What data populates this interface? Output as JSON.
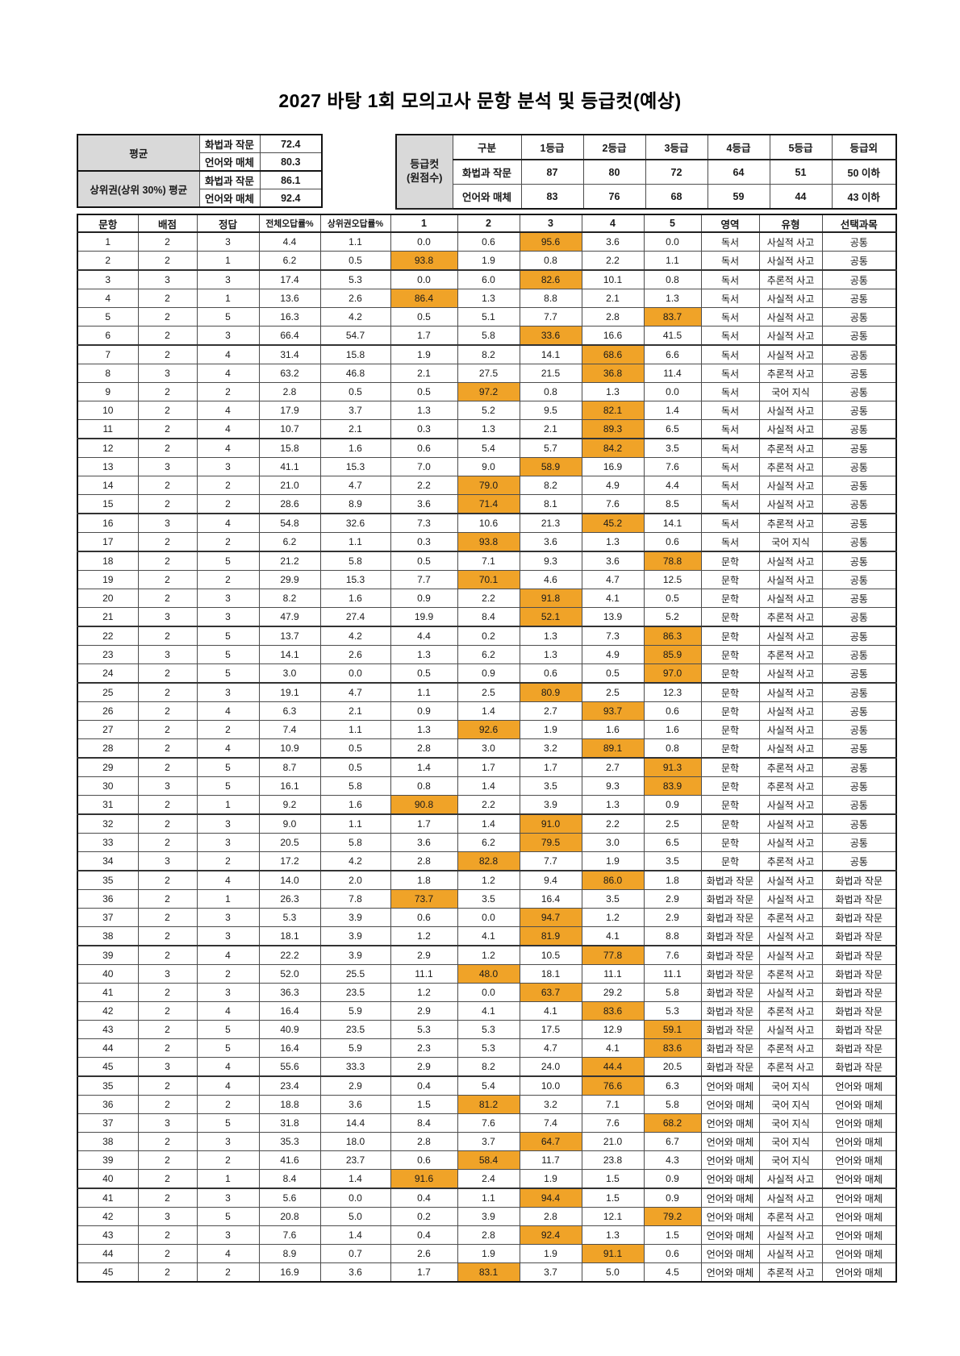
{
  "title": "2027 바탕 1회 모의고사 문항 분석 및 등급컷(예상)",
  "colors": {
    "highlight": "#F0A328",
    "header_gray": "#D9D9D9"
  },
  "averages": {
    "groups": [
      {
        "label": "평균",
        "rows": [
          [
            "화법과 작문",
            "72.4"
          ],
          [
            "언어와 매체",
            "80.3"
          ]
        ]
      },
      {
        "label": "상위권(상위 30%) 평균",
        "rows": [
          [
            "화법과 작문",
            "86.1"
          ],
          [
            "언어와 매체",
            "92.4"
          ]
        ]
      }
    ]
  },
  "grade_cut": {
    "corner_line1": "등급컷",
    "corner_line2": "(원점수)",
    "headers": [
      "구분",
      "1등급",
      "2등급",
      "3등급",
      "4등급",
      "5등급",
      "등급외"
    ],
    "rows": [
      {
        "label": "화법과 작문",
        "values": [
          "87",
          "80",
          "72",
          "64",
          "51",
          "50 이하"
        ]
      },
      {
        "label": "언어와 매체",
        "values": [
          "83",
          "76",
          "68",
          "59",
          "44",
          "43 이하"
        ]
      }
    ]
  },
  "main_table": {
    "headers": [
      "문항",
      "배점",
      "정답",
      "전체오답률%",
      "상위권오답률%",
      "1",
      "2",
      "3",
      "4",
      "5",
      "영역",
      "유형",
      "선택과목"
    ],
    "group_breaks": [
      1,
      5,
      10,
      14,
      16,
      20,
      23,
      27,
      30,
      33,
      37,
      44,
      50
    ],
    "rows": [
      [
        1,
        2,
        3,
        "4.4",
        "1.1",
        "0.0",
        "0.6",
        "95.6",
        "3.6",
        "0.0",
        "독서",
        "사실적 사고",
        "공통"
      ],
      [
        2,
        2,
        1,
        "6.2",
        "0.5",
        "93.8",
        "1.9",
        "0.8",
        "2.2",
        "1.1",
        "독서",
        "사실적 사고",
        "공통"
      ],
      [
        3,
        3,
        3,
        "17.4",
        "5.3",
        "0.0",
        "6.0",
        "82.6",
        "10.1",
        "0.8",
        "독서",
        "추론적 사고",
        "공통"
      ],
      [
        4,
        2,
        1,
        "13.6",
        "2.6",
        "86.4",
        "1.3",
        "8.8",
        "2.1",
        "1.3",
        "독서",
        "사실적 사고",
        "공통"
      ],
      [
        5,
        2,
        5,
        "16.3",
        "4.2",
        "0.5",
        "5.1",
        "7.7",
        "2.8",
        "83.7",
        "독서",
        "사실적 사고",
        "공통"
      ],
      [
        6,
        2,
        3,
        "66.4",
        "54.7",
        "1.7",
        "5.8",
        "33.6",
        "16.6",
        "41.5",
        "독서",
        "사실적 사고",
        "공통"
      ],
      [
        7,
        2,
        4,
        "31.4",
        "15.8",
        "1.9",
        "8.2",
        "14.1",
        "68.6",
        "6.6",
        "독서",
        "사실적 사고",
        "공통"
      ],
      [
        8,
        3,
        4,
        "63.2",
        "46.8",
        "2.1",
        "27.5",
        "21.5",
        "36.8",
        "11.4",
        "독서",
        "추론적 사고",
        "공통"
      ],
      [
        9,
        2,
        2,
        "2.8",
        "0.5",
        "0.5",
        "97.2",
        "0.8",
        "1.3",
        "0.0",
        "독서",
        "국어 지식",
        "공통"
      ],
      [
        10,
        2,
        4,
        "17.9",
        "3.7",
        "1.3",
        "5.2",
        "9.5",
        "82.1",
        "1.4",
        "독서",
        "사실적 사고",
        "공통"
      ],
      [
        11,
        2,
        4,
        "10.7",
        "2.1",
        "0.3",
        "1.3",
        "2.1",
        "89.3",
        "6.5",
        "독서",
        "사실적 사고",
        "공통"
      ],
      [
        12,
        2,
        4,
        "15.8",
        "1.6",
        "0.6",
        "5.4",
        "5.7",
        "84.2",
        "3.5",
        "독서",
        "추론적 사고",
        "공통"
      ],
      [
        13,
        3,
        3,
        "41.1",
        "15.3",
        "7.0",
        "9.0",
        "58.9",
        "16.9",
        "7.6",
        "독서",
        "추론적 사고",
        "공통"
      ],
      [
        14,
        2,
        2,
        "21.0",
        "4.7",
        "2.2",
        "79.0",
        "8.2",
        "4.9",
        "4.4",
        "독서",
        "사실적 사고",
        "공통"
      ],
      [
        15,
        2,
        2,
        "28.6",
        "8.9",
        "3.6",
        "71.4",
        "8.1",
        "7.6",
        "8.5",
        "독서",
        "사실적 사고",
        "공통"
      ],
      [
        16,
        3,
        4,
        "54.8",
        "32.6",
        "7.3",
        "10.6",
        "21.3",
        "45.2",
        "14.1",
        "독서",
        "추론적 사고",
        "공통"
      ],
      [
        17,
        2,
        2,
        "6.2",
        "1.1",
        "0.3",
        "93.8",
        "3.6",
        "1.3",
        "0.6",
        "독서",
        "국어 지식",
        "공통"
      ],
      [
        18,
        2,
        5,
        "21.2",
        "5.8",
        "0.5",
        "7.1",
        "9.3",
        "3.6",
        "78.8",
        "문학",
        "사실적 사고",
        "공통"
      ],
      [
        19,
        2,
        2,
        "29.9",
        "15.3",
        "7.7",
        "70.1",
        "4.6",
        "4.7",
        "12.5",
        "문학",
        "사실적 사고",
        "공통"
      ],
      [
        20,
        2,
        3,
        "8.2",
        "1.6",
        "0.9",
        "2.2",
        "91.8",
        "4.1",
        "0.5",
        "문학",
        "사실적 사고",
        "공통"
      ],
      [
        21,
        3,
        3,
        "47.9",
        "27.4",
        "19.9",
        "8.4",
        "52.1",
        "13.9",
        "5.2",
        "문학",
        "추론적 사고",
        "공통"
      ],
      [
        22,
        2,
        5,
        "13.7",
        "4.2",
        "4.4",
        "0.2",
        "1.3",
        "7.3",
        "86.3",
        "문학",
        "사실적 사고",
        "공통"
      ],
      [
        23,
        3,
        5,
        "14.1",
        "2.6",
        "1.3",
        "6.2",
        "1.3",
        "4.9",
        "85.9",
        "문학",
        "추론적 사고",
        "공통"
      ],
      [
        24,
        2,
        5,
        "3.0",
        "0.0",
        "0.5",
        "0.9",
        "0.6",
        "0.5",
        "97.0",
        "문학",
        "사실적 사고",
        "공통"
      ],
      [
        25,
        2,
        3,
        "19.1",
        "4.7",
        "1.1",
        "2.5",
        "80.9",
        "2.5",
        "12.3",
        "문학",
        "사실적 사고",
        "공통"
      ],
      [
        26,
        2,
        4,
        "6.3",
        "2.1",
        "0.9",
        "1.4",
        "2.7",
        "93.7",
        "0.6",
        "문학",
        "사실적 사고",
        "공통"
      ],
      [
        27,
        2,
        2,
        "7.4",
        "1.1",
        "1.3",
        "92.6",
        "1.9",
        "1.6",
        "1.6",
        "문학",
        "사실적 사고",
        "공통"
      ],
      [
        28,
        2,
        4,
        "10.9",
        "0.5",
        "2.8",
        "3.0",
        "3.2",
        "89.1",
        "0.8",
        "문학",
        "사실적 사고",
        "공통"
      ],
      [
        29,
        2,
        5,
        "8.7",
        "0.5",
        "1.4",
        "1.7",
        "1.7",
        "2.7",
        "91.3",
        "문학",
        "추론적 사고",
        "공통"
      ],
      [
        30,
        3,
        5,
        "16.1",
        "5.8",
        "0.8",
        "1.4",
        "3.5",
        "9.3",
        "83.9",
        "문학",
        "추론적 사고",
        "공통"
      ],
      [
        31,
        2,
        1,
        "9.2",
        "1.6",
        "90.8",
        "2.2",
        "3.9",
        "1.3",
        "0.9",
        "문학",
        "사실적 사고",
        "공통"
      ],
      [
        32,
        2,
        3,
        "9.0",
        "1.1",
        "1.7",
        "1.4",
        "91.0",
        "2.2",
        "2.5",
        "문학",
        "사실적 사고",
        "공통"
      ],
      [
        33,
        2,
        3,
        "20.5",
        "5.8",
        "3.6",
        "6.2",
        "79.5",
        "3.0",
        "6.5",
        "문학",
        "사실적 사고",
        "공통"
      ],
      [
        34,
        3,
        2,
        "17.2",
        "4.2",
        "2.8",
        "82.8",
        "7.7",
        "1.9",
        "3.5",
        "문학",
        "추론적 사고",
        "공통"
      ],
      [
        35,
        2,
        4,
        "14.0",
        "2.0",
        "1.8",
        "1.2",
        "9.4",
        "86.0",
        "1.8",
        "화법과 작문",
        "사실적 사고",
        "화법과 작문"
      ],
      [
        36,
        2,
        1,
        "26.3",
        "7.8",
        "73.7",
        "3.5",
        "16.4",
        "3.5",
        "2.9",
        "화법과 작문",
        "사실적 사고",
        "화법과 작문"
      ],
      [
        37,
        2,
        3,
        "5.3",
        "3.9",
        "0.6",
        "0.0",
        "94.7",
        "1.2",
        "2.9",
        "화법과 작문",
        "추론적 사고",
        "화법과 작문"
      ],
      [
        38,
        2,
        3,
        "18.1",
        "3.9",
        "1.2",
        "4.1",
        "81.9",
        "4.1",
        "8.8",
        "화법과 작문",
        "사실적 사고",
        "화법과 작문"
      ],
      [
        39,
        2,
        4,
        "22.2",
        "3.9",
        "2.9",
        "1.2",
        "10.5",
        "77.8",
        "7.6",
        "화법과 작문",
        "사실적 사고",
        "화법과 작문"
      ],
      [
        40,
        3,
        2,
        "52.0",
        "25.5",
        "11.1",
        "48.0",
        "18.1",
        "11.1",
        "11.1",
        "화법과 작문",
        "추론적 사고",
        "화법과 작문"
      ],
      [
        41,
        2,
        3,
        "36.3",
        "23.5",
        "1.2",
        "0.0",
        "63.7",
        "29.2",
        "5.8",
        "화법과 작문",
        "사실적 사고",
        "화법과 작문"
      ],
      [
        42,
        2,
        4,
        "16.4",
        "5.9",
        "2.9",
        "4.1",
        "4.1",
        "83.6",
        "5.3",
        "화법과 작문",
        "추론적 사고",
        "화법과 작문"
      ],
      [
        43,
        2,
        5,
        "40.9",
        "23.5",
        "5.3",
        "5.3",
        "17.5",
        "12.9",
        "59.1",
        "화법과 작문",
        "사실적 사고",
        "화법과 작문"
      ],
      [
        44,
        2,
        5,
        "16.4",
        "5.9",
        "2.3",
        "5.3",
        "4.7",
        "4.1",
        "83.6",
        "화법과 작문",
        "추론적 사고",
        "화법과 작문"
      ],
      [
        45,
        3,
        4,
        "55.6",
        "33.3",
        "2.9",
        "8.2",
        "24.0",
        "44.4",
        "20.5",
        "화법과 작문",
        "추론적 사고",
        "화법과 작문"
      ],
      [
        35,
        2,
        4,
        "23.4",
        "2.9",
        "0.4",
        "5.4",
        "10.0",
        "76.6",
        "6.3",
        "언어와 매체",
        "국어 지식",
        "언어와 매체"
      ],
      [
        36,
        2,
        2,
        "18.8",
        "3.6",
        "1.5",
        "81.2",
        "3.2",
        "7.1",
        "5.8",
        "언어와 매체",
        "국어 지식",
        "언어와 매체"
      ],
      [
        37,
        3,
        5,
        "31.8",
        "14.4",
        "8.4",
        "7.6",
        "7.4",
        "7.6",
        "68.2",
        "언어와 매체",
        "국어 지식",
        "언어와 매체"
      ],
      [
        38,
        2,
        3,
        "35.3",
        "18.0",
        "2.8",
        "3.7",
        "64.7",
        "21.0",
        "6.7",
        "언어와 매체",
        "국어 지식",
        "언어와 매체"
      ],
      [
        39,
        2,
        2,
        "41.6",
        "23.7",
        "0.6",
        "58.4",
        "11.7",
        "23.8",
        "4.3",
        "언어와 매체",
        "국어 지식",
        "언어와 매체"
      ],
      [
        40,
        2,
        1,
        "8.4",
        "1.4",
        "91.6",
        "2.4",
        "1.9",
        "1.5",
        "0.9",
        "언어와 매체",
        "사실적 사고",
        "언어와 매체"
      ],
      [
        41,
        2,
        3,
        "5.6",
        "0.0",
        "0.4",
        "1.1",
        "94.4",
        "1.5",
        "0.9",
        "언어와 매체",
        "사실적 사고",
        "언어와 매체"
      ],
      [
        42,
        3,
        5,
        "20.8",
        "5.0",
        "0.2",
        "3.9",
        "2.8",
        "12.1",
        "79.2",
        "언어와 매체",
        "추론적 사고",
        "언어와 매체"
      ],
      [
        43,
        2,
        3,
        "7.6",
        "1.4",
        "0.4",
        "2.8",
        "92.4",
        "1.3",
        "1.5",
        "언어와 매체",
        "사실적 사고",
        "언어와 매체"
      ],
      [
        44,
        2,
        4,
        "8.9",
        "0.7",
        "2.6",
        "1.9",
        "1.9",
        "91.1",
        "0.6",
        "언어와 매체",
        "사실적 사고",
        "언어와 매체"
      ],
      [
        45,
        2,
        2,
        "16.9",
        "3.6",
        "1.7",
        "83.1",
        "3.7",
        "5.0",
        "4.5",
        "언어와 매체",
        "추론적 사고",
        "언어와 매체"
      ]
    ]
  }
}
